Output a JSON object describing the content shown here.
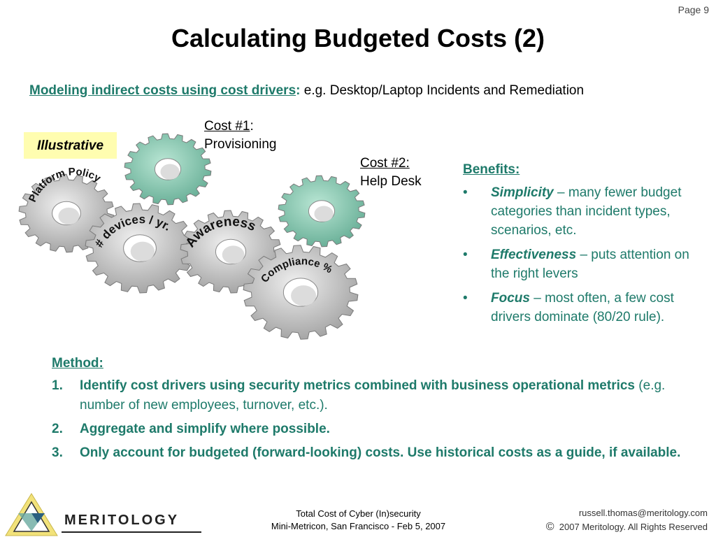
{
  "page": {
    "number_label": "Page 9"
  },
  "title": "Calculating Budgeted Costs (2)",
  "subtitle": {
    "link": "Modeling indirect costs using cost drivers",
    "colon": ":",
    "rest": " e.g. Desktop/Laptop Incidents and Remediation"
  },
  "illustrative_label": "Illustrative",
  "cost1": {
    "label": "Cost #1",
    "colon": ":",
    "desc": "Provisioning"
  },
  "cost2": {
    "label": "Cost #2:",
    "desc": "Help Desk"
  },
  "gears": {
    "platform": "Platform Policy",
    "devices": "# devices / yr.",
    "awareness": "Awareness",
    "compliance": "Compliance %"
  },
  "benefits": {
    "heading": "Benefits:",
    "items": [
      {
        "term": "Simplicity",
        "text": " – many fewer budget categories than incident types, scenarios, etc."
      },
      {
        "term": "Effectiveness",
        "text": " – puts attention on the right levers"
      },
      {
        "term": "Focus",
        "text": " – most often, a few cost drivers dominate (80/20 rule)."
      }
    ]
  },
  "method": {
    "heading": "Method:",
    "items": [
      {
        "num": "1.",
        "bold": "Identify cost drivers using security metrics combined with business operational metrics",
        "normal": " (e.g. number of new employees, turnover, etc.)."
      },
      {
        "num": "2.",
        "bold": "Aggregate and simplify where possible.",
        "normal": ""
      },
      {
        "num": "3.",
        "bold": "Only account for budgeted (forward-looking) costs. Use historical costs as a guide, if available.",
        "normal": ""
      }
    ]
  },
  "footer": {
    "logo": "Meritology",
    "center_line1": "Total Cost of Cyber (In)security",
    "center_line2": "Mini-Metricon, San Francisco - Feb 5, 2007",
    "email": "russell.thomas@meritology.com",
    "copyright_symbol": "©",
    "copyright": "2007 Meritology.  All Rights Reserved"
  },
  "colors": {
    "accent": "#1e7a6a",
    "gear_grey": "#c4c4c4",
    "gear_teal": "#7fc4ad",
    "highlight": "#fffdb0"
  }
}
